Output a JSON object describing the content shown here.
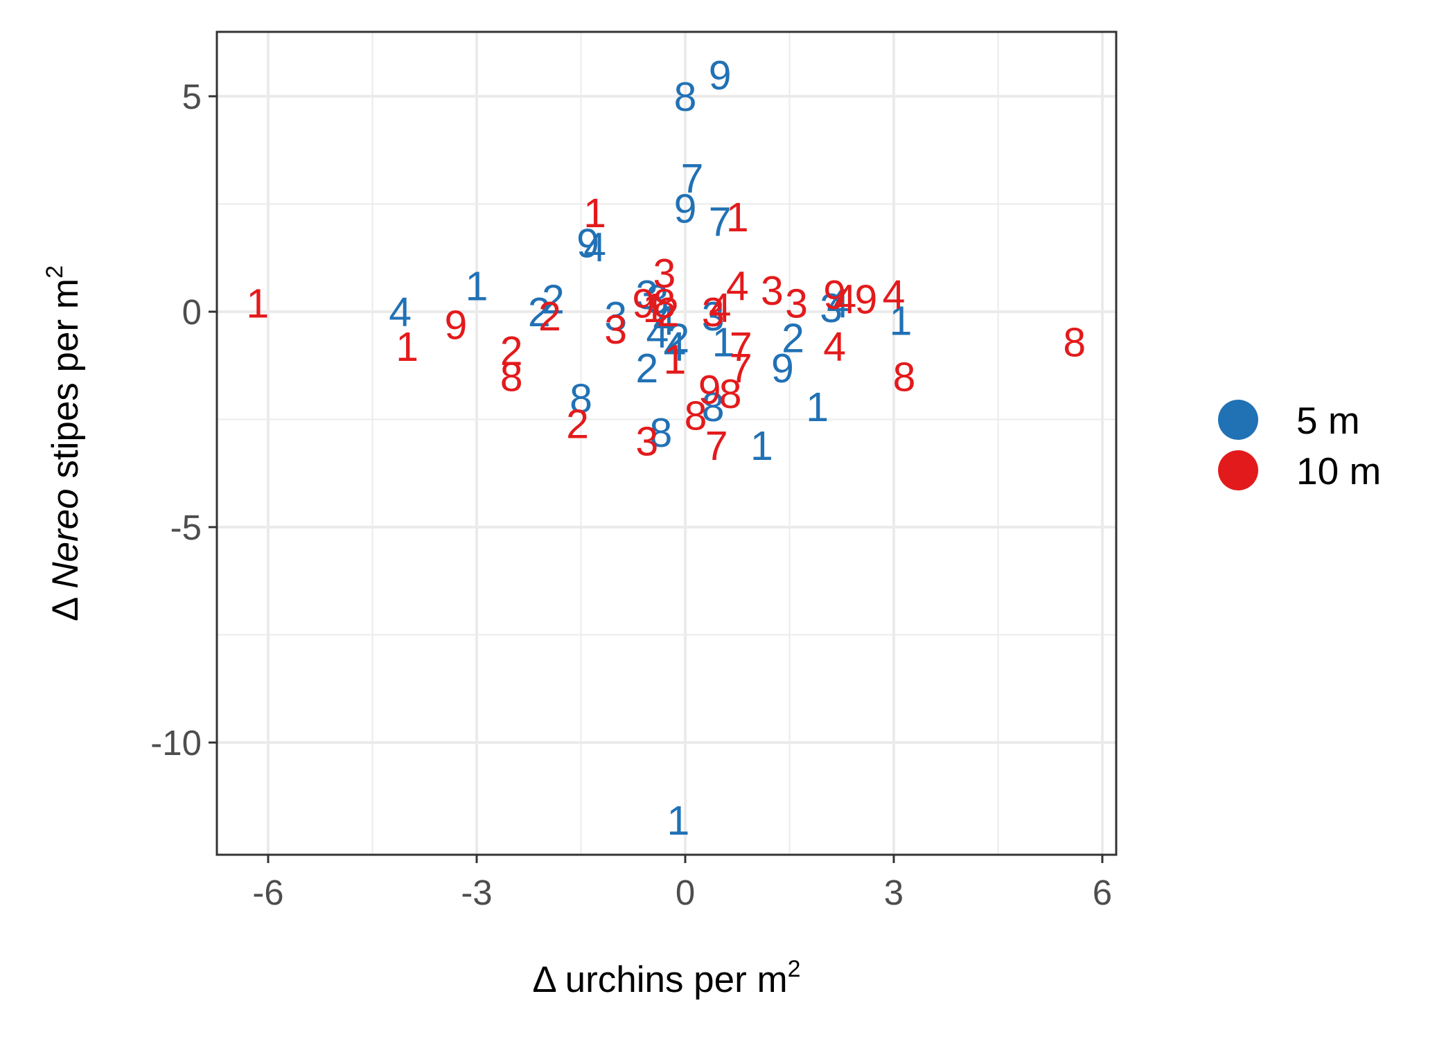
{
  "chart_data": {
    "type": "scatter",
    "marker": "text",
    "xlabel": {
      "prefix": "Δ urchins per m",
      "sup": "2"
    },
    "ylabel": {
      "prefix": "Δ ",
      "italic": "Nereo",
      "suffix": " stipes per m",
      "sup": "2"
    },
    "xlim": [
      -6.6,
      6.6
    ],
    "ylim": [
      -12.5,
      6.5
    ],
    "x_ticks": [
      -6,
      -3,
      0,
      3,
      6
    ],
    "y_ticks": [
      5,
      0,
      -5,
      -10
    ],
    "x_tick_labels": [
      "-6",
      "-3",
      "0",
      "3",
      "6"
    ],
    "y_tick_labels": [
      "5",
      "0",
      "-5",
      "-10"
    ],
    "grid": true,
    "legend_position": "right",
    "series": [
      {
        "name": "5 m",
        "color": "#2171b5",
        "points": [
          {
            "x": 0.5,
            "y": 5.5,
            "label": "9"
          },
          {
            "x": 0.0,
            "y": 5.0,
            "label": "8"
          },
          {
            "x": 0.1,
            "y": 3.1,
            "label": "7"
          },
          {
            "x": 0.0,
            "y": 2.4,
            "label": "9"
          },
          {
            "x": 0.5,
            "y": 2.1,
            "label": "7"
          },
          {
            "x": -1.4,
            "y": 1.6,
            "label": "9"
          },
          {
            "x": -1.3,
            "y": 1.5,
            "label": "4"
          },
          {
            "x": -3.0,
            "y": 0.6,
            "label": "1"
          },
          {
            "x": -1.9,
            "y": 0.3,
            "label": "2"
          },
          {
            "x": -4.1,
            "y": 0.0,
            "label": "4"
          },
          {
            "x": -2.1,
            "y": 0.0,
            "label": "2"
          },
          {
            "x": -0.55,
            "y": 0.4,
            "label": "3"
          },
          {
            "x": -0.4,
            "y": 0.3,
            "label": "3"
          },
          {
            "x": -1.0,
            "y": -0.1,
            "label": "3"
          },
          {
            "x": -0.3,
            "y": -0.2,
            "label": "4"
          },
          {
            "x": -0.4,
            "y": -0.5,
            "label": "4"
          },
          {
            "x": -0.1,
            "y": -0.6,
            "label": "2"
          },
          {
            "x": -0.15,
            "y": -0.8,
            "label": "4"
          },
          {
            "x": 0.4,
            "y": -0.1,
            "label": "3"
          },
          {
            "x": 0.55,
            "y": -0.7,
            "label": "1"
          },
          {
            "x": 1.55,
            "y": -0.6,
            "label": "2"
          },
          {
            "x": 2.1,
            "y": 0.1,
            "label": "3"
          },
          {
            "x": 2.2,
            "y": 0.2,
            "label": "4"
          },
          {
            "x": 3.1,
            "y": -0.2,
            "label": "1"
          },
          {
            "x": 1.4,
            "y": -1.3,
            "label": "9"
          },
          {
            "x": -0.55,
            "y": -1.3,
            "label": "2"
          },
          {
            "x": -1.5,
            "y": -2.0,
            "label": "8"
          },
          {
            "x": 0.4,
            "y": -2.2,
            "label": "8"
          },
          {
            "x": 1.9,
            "y": -2.2,
            "label": "1"
          },
          {
            "x": -0.35,
            "y": -2.8,
            "label": "8"
          },
          {
            "x": 1.1,
            "y": -3.1,
            "label": "1"
          },
          {
            "x": -0.1,
            "y": -11.8,
            "label": "1"
          }
        ]
      },
      {
        "name": "10 m",
        "color": "#e31a1c",
        "points": [
          {
            "x": -1.3,
            "y": 2.3,
            "label": "1"
          },
          {
            "x": 0.75,
            "y": 2.2,
            "label": "1"
          },
          {
            "x": -0.3,
            "y": 0.9,
            "label": "3"
          },
          {
            "x": -6.15,
            "y": 0.2,
            "label": "1"
          },
          {
            "x": -3.3,
            "y": -0.3,
            "label": "9"
          },
          {
            "x": -4.0,
            "y": -0.8,
            "label": "1"
          },
          {
            "x": -2.5,
            "y": -0.9,
            "label": "2"
          },
          {
            "x": -2.5,
            "y": -1.5,
            "label": "8"
          },
          {
            "x": -1.95,
            "y": -0.1,
            "label": "2"
          },
          {
            "x": -1.0,
            "y": -0.4,
            "label": "3"
          },
          {
            "x": -0.6,
            "y": 0.2,
            "label": "9"
          },
          {
            "x": -0.45,
            "y": 0.1,
            "label": "1"
          },
          {
            "x": -0.3,
            "y": 0.2,
            "label": "8"
          },
          {
            "x": -0.25,
            "y": 0.0,
            "label": "2"
          },
          {
            "x": -0.15,
            "y": -1.1,
            "label": "1"
          },
          {
            "x": 0.4,
            "y": 0.0,
            "label": "3"
          },
          {
            "x": 0.5,
            "y": 0.1,
            "label": "4"
          },
          {
            "x": 0.75,
            "y": 0.6,
            "label": "4"
          },
          {
            "x": 1.25,
            "y": 0.5,
            "label": "3"
          },
          {
            "x": 1.6,
            "y": 0.2,
            "label": "3"
          },
          {
            "x": 2.15,
            "y": 0.4,
            "label": "9"
          },
          {
            "x": 2.3,
            "y": 0.3,
            "label": "4"
          },
          {
            "x": 2.6,
            "y": 0.3,
            "label": "9"
          },
          {
            "x": 3.0,
            "y": 0.4,
            "label": "4"
          },
          {
            "x": 0.8,
            "y": -0.8,
            "label": "7"
          },
          {
            "x": 0.8,
            "y": -1.3,
            "label": "7"
          },
          {
            "x": 2.15,
            "y": -0.8,
            "label": "4"
          },
          {
            "x": 5.6,
            "y": -0.7,
            "label": "8"
          },
          {
            "x": 3.15,
            "y": -1.5,
            "label": "8"
          },
          {
            "x": 0.35,
            "y": -1.8,
            "label": "9"
          },
          {
            "x": 0.65,
            "y": -1.9,
            "label": "8"
          },
          {
            "x": 0.15,
            "y": -2.4,
            "label": "8"
          },
          {
            "x": -1.55,
            "y": -2.6,
            "label": "2"
          },
          {
            "x": -0.55,
            "y": -3.0,
            "label": "3"
          },
          {
            "x": 0.45,
            "y": -3.1,
            "label": "7"
          }
        ]
      }
    ]
  }
}
